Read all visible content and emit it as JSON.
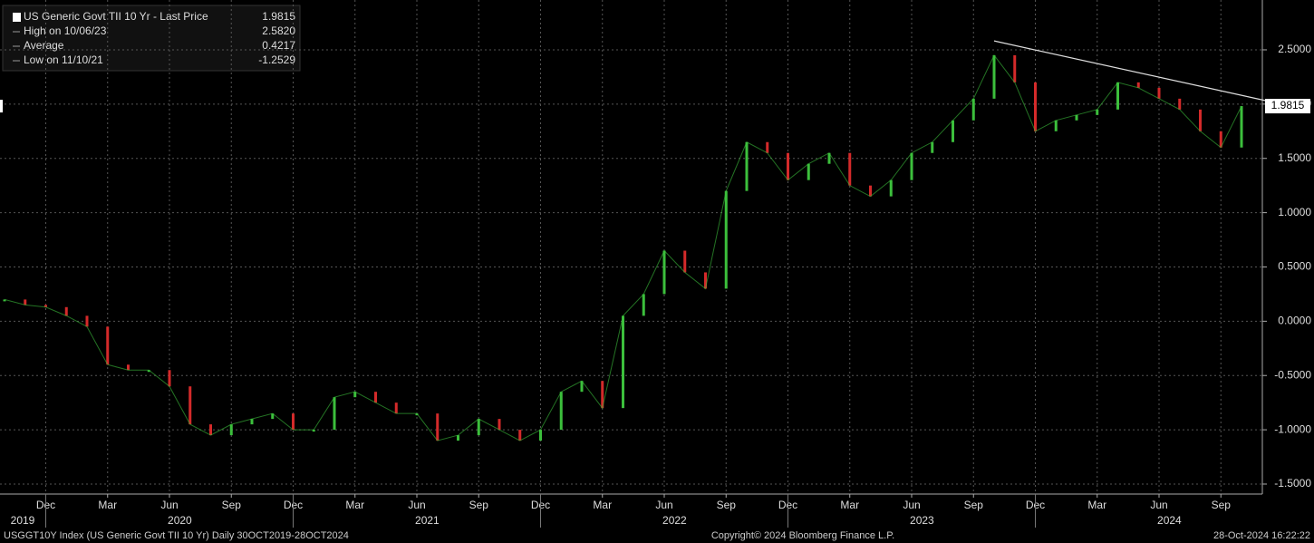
{
  "chart_data": {
    "type": "line",
    "x": [
      "2019-10",
      "2019-11",
      "2019-12",
      "2020-01",
      "2020-02",
      "2020-03",
      "2020-04",
      "2020-05",
      "2020-06",
      "2020-07",
      "2020-08",
      "2020-09",
      "2020-10",
      "2020-11",
      "2020-12",
      "2021-01",
      "2021-02",
      "2021-03",
      "2021-04",
      "2021-05",
      "2021-06",
      "2021-07",
      "2021-08",
      "2021-09",
      "2021-10",
      "2021-11",
      "2021-12",
      "2022-01",
      "2022-02",
      "2022-03",
      "2022-04",
      "2022-05",
      "2022-06",
      "2022-07",
      "2022-08",
      "2022-09",
      "2022-10",
      "2022-11",
      "2022-12",
      "2023-01",
      "2023-02",
      "2023-03",
      "2023-04",
      "2023-05",
      "2023-06",
      "2023-07",
      "2023-08",
      "2023-09",
      "2023-10",
      "2023-11",
      "2023-12",
      "2024-01",
      "2024-02",
      "2024-03",
      "2024-04",
      "2024-05",
      "2024-06",
      "2024-07",
      "2024-08",
      "2024-09",
      "2024-10"
    ],
    "series": [
      {
        "name": "US Generic Govt TII 10 Yr - Last Price",
        "up_color": "#3cbf3c",
        "down_color": "#d42a2a",
        "values": [
          0.2,
          0.15,
          0.13,
          0.05,
          -0.05,
          -0.4,
          -0.45,
          -0.45,
          -0.6,
          -0.95,
          -1.05,
          -0.95,
          -0.9,
          -0.85,
          -1.0,
          -1.0,
          -0.7,
          -0.65,
          -0.75,
          -0.85,
          -0.85,
          -1.1,
          -1.05,
          -0.9,
          -1.0,
          -1.1,
          -1.0,
          -0.65,
          -0.55,
          -0.8,
          0.05,
          0.25,
          0.65,
          0.45,
          0.3,
          1.2,
          1.65,
          1.55,
          1.3,
          1.45,
          1.55,
          1.25,
          1.15,
          1.3,
          1.55,
          1.65,
          1.85,
          2.05,
          2.45,
          2.2,
          1.75,
          1.85,
          1.9,
          1.95,
          2.2,
          2.15,
          2.05,
          1.95,
          1.75,
          1.6,
          1.9815
        ]
      }
    ],
    "legend": [
      {
        "label": "US Generic Govt TII 10 Yr - Last Price",
        "value": 1.9815,
        "value_label": "1.9815"
      },
      {
        "label": "High on 10/06/23",
        "value": 2.582,
        "value_label": "2.5820"
      },
      {
        "label": "Average",
        "value": 0.4217,
        "value_label": "0.4217"
      },
      {
        "label": "Low on 11/10/21",
        "value": -1.2529,
        "value_label": "-1.2529"
      }
    ],
    "trendline": {
      "start": {
        "x": "2023-10",
        "y": 2.582
      },
      "end": {
        "x": "2024-11",
        "y": 2.03
      }
    },
    "ylim": [
      -1.592,
      2.959
    ],
    "yticks": [
      {
        "value": 2.5,
        "label": "2.5000"
      },
      {
        "value": 2.0,
        "label": "2.0000"
      },
      {
        "value": 1.5,
        "label": "1.5000"
      },
      {
        "value": 1.0,
        "label": "1.0000"
      },
      {
        "value": 0.5,
        "label": "0.5000"
      },
      {
        "value": 0,
        "label": "0.0000"
      },
      {
        "value": -0.5,
        "label": "-0.5000"
      },
      {
        "value": -1.0,
        "label": "-1.0000"
      },
      {
        "value": -1.5,
        "label": "-1.5000"
      }
    ],
    "xticks": [
      {
        "value": "2019-12",
        "label": "Dec"
      },
      {
        "value": "2020-03",
        "label": "Mar"
      },
      {
        "value": "2020-06",
        "label": "Jun"
      },
      {
        "value": "2020-09",
        "label": "Sep"
      },
      {
        "value": "2020-12",
        "label": "Dec"
      },
      {
        "value": "2021-03",
        "label": "Mar"
      },
      {
        "value": "2021-06",
        "label": "Jun"
      },
      {
        "value": "2021-09",
        "label": "Sep"
      },
      {
        "value": "2021-12",
        "label": "Dec"
      },
      {
        "value": "2022-03",
        "label": "Mar"
      },
      {
        "value": "2022-06",
        "label": "Jun"
      },
      {
        "value": "2022-09",
        "label": "Sep"
      },
      {
        "value": "2022-12",
        "label": "Dec"
      },
      {
        "value": "2023-03",
        "label": "Mar"
      },
      {
        "value": "2023-06",
        "label": "Jun"
      },
      {
        "value": "2023-09",
        "label": "Sep"
      },
      {
        "value": "2023-12",
        "label": "Dec"
      },
      {
        "value": "2024-03",
        "label": "Mar"
      },
      {
        "value": "2024-06",
        "label": "Jun"
      },
      {
        "value": "2024-09",
        "label": "Sep"
      }
    ],
    "years": [
      "2019",
      "2020",
      "2021",
      "2022",
      "2023",
      "2024"
    ],
    "grid": true,
    "footer": {
      "left": "USGGT10Y Index (US Generic Govt TII 10 Yr)  Daily 30OCT2019-28OCT2024",
      "center": "Copyright© 2024 Bloomberg Finance L.P.",
      "right": "28-Oct-2024 16:22:22"
    }
  }
}
